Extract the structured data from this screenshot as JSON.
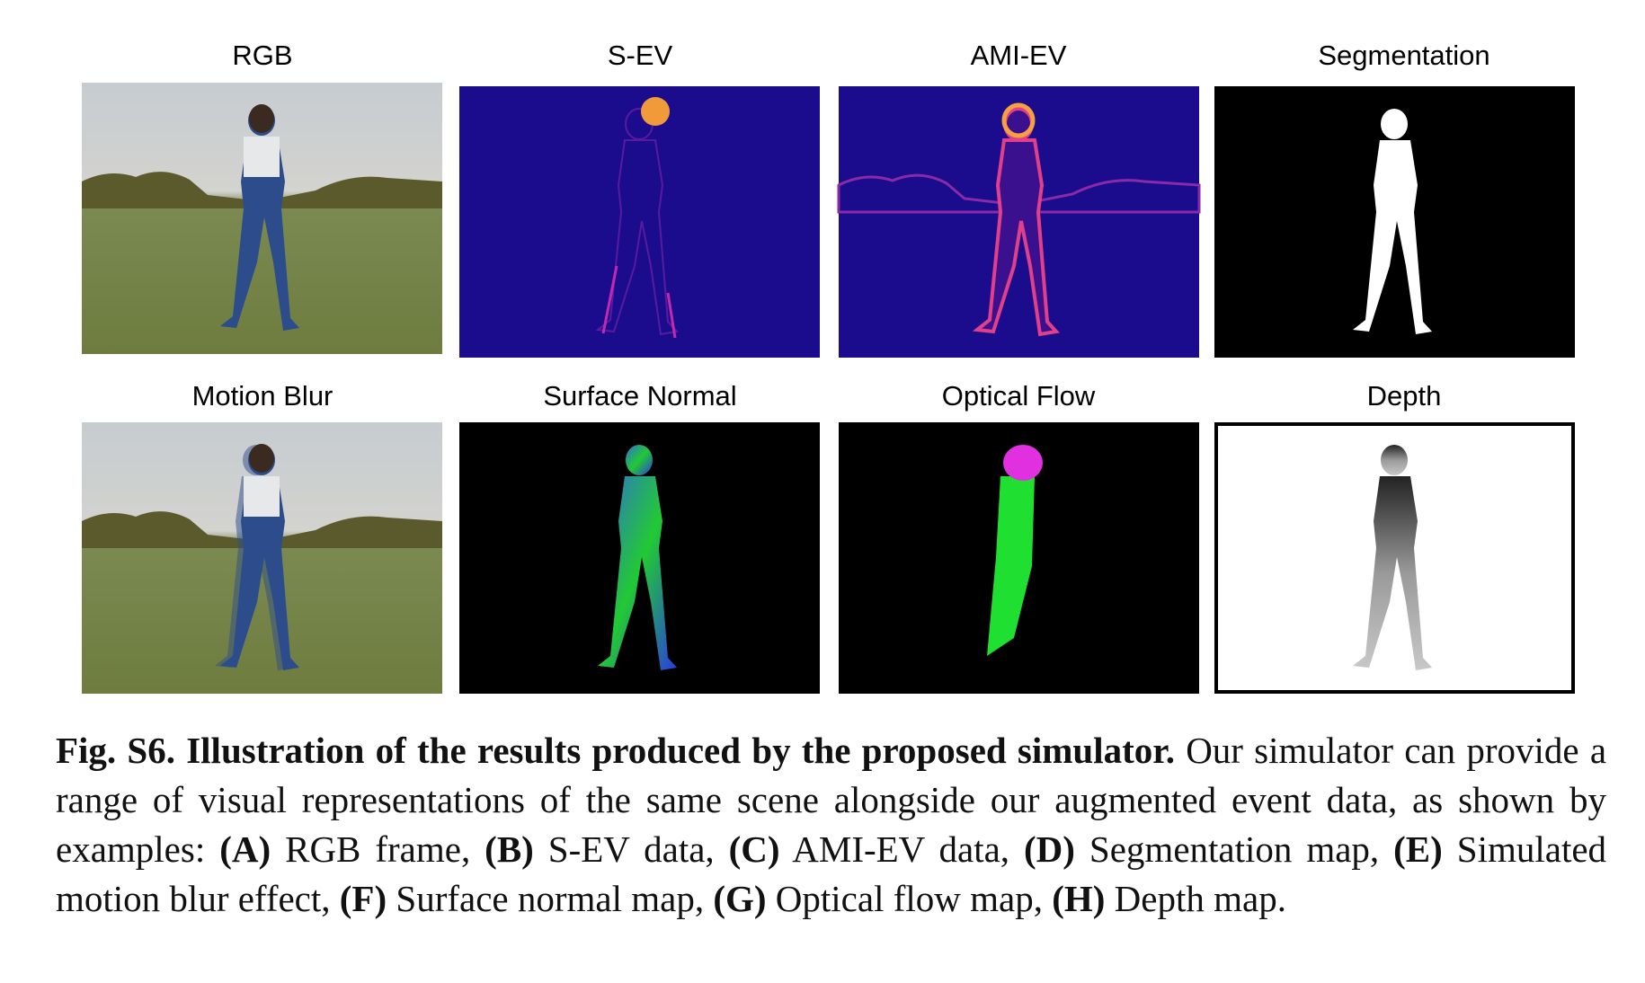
{
  "figure": {
    "panels": [
      {
        "title": "RGB"
      },
      {
        "title": "S-EV"
      },
      {
        "title": "AMI-EV"
      },
      {
        "title": "Segmentation"
      },
      {
        "title": "Motion Blur"
      },
      {
        "title": "Surface Normal"
      },
      {
        "title": "Optical Flow"
      },
      {
        "title": "Depth"
      }
    ]
  },
  "caption": {
    "label": "Fig. S6.",
    "title": "Illustration of the results produced by the proposed simulator.",
    "intro": "Our simulator can provide a range of visual representations of the same scene alongside our augmented event data, as shown by examples:",
    "items": [
      {
        "letter": "(A)",
        "text": "RGB frame,"
      },
      {
        "letter": "(B)",
        "text": "S-EV data,"
      },
      {
        "letter": "(C)",
        "text": "AMI-EV data,"
      },
      {
        "letter": "(D)",
        "text": "Segmentation map,"
      },
      {
        "letter": "(E)",
        "text": "Simulated motion blur effect,"
      },
      {
        "letter": "(F)",
        "text": "Surface normal map,"
      },
      {
        "letter": "(G)",
        "text": "Optical flow map,"
      },
      {
        "letter": "(H)",
        "text": "Depth map."
      }
    ]
  }
}
